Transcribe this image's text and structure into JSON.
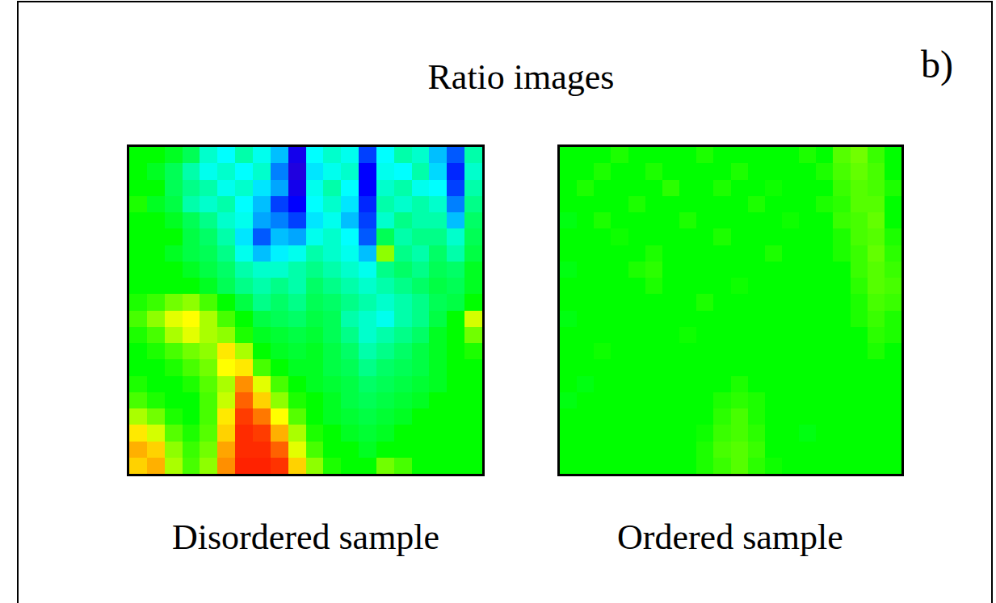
{
  "figure": {
    "title": "Ratio images",
    "panel_label": "b)"
  },
  "chart_data": [
    {
      "type": "heatmap",
      "xlabel": "Disordered sample",
      "tick_labels": false,
      "zlim": [
        0,
        1
      ],
      "z": [
        [
          0.5,
          0.5,
          0.48,
          0.45,
          0.38,
          0.35,
          0.4,
          0.36,
          0.3,
          0.12,
          0.35,
          0.38,
          0.36,
          0.2,
          0.35,
          0.4,
          0.38,
          0.3,
          0.22,
          0.4
        ],
        [
          0.5,
          0.48,
          0.45,
          0.4,
          0.36,
          0.38,
          0.35,
          0.38,
          0.25,
          0.1,
          0.33,
          0.36,
          0.38,
          0.15,
          0.36,
          0.35,
          0.4,
          0.32,
          0.18,
          0.38
        ],
        [
          0.5,
          0.5,
          0.45,
          0.42,
          0.4,
          0.36,
          0.38,
          0.33,
          0.28,
          0.12,
          0.36,
          0.4,
          0.35,
          0.15,
          0.38,
          0.4,
          0.36,
          0.35,
          0.2,
          0.4
        ],
        [
          0.52,
          0.48,
          0.46,
          0.4,
          0.38,
          0.4,
          0.35,
          0.3,
          0.2,
          0.15,
          0.35,
          0.38,
          0.33,
          0.18,
          0.4,
          0.38,
          0.4,
          0.38,
          0.25,
          0.42
        ],
        [
          0.5,
          0.5,
          0.48,
          0.45,
          0.42,
          0.38,
          0.36,
          0.28,
          0.25,
          0.2,
          0.33,
          0.36,
          0.3,
          0.2,
          0.38,
          0.42,
          0.4,
          0.4,
          0.3,
          0.44
        ],
        [
          0.5,
          0.5,
          0.5,
          0.46,
          0.44,
          0.4,
          0.33,
          0.22,
          0.3,
          0.28,
          0.36,
          0.38,
          0.35,
          0.22,
          0.45,
          0.4,
          0.42,
          0.42,
          0.38,
          0.45
        ],
        [
          0.5,
          0.5,
          0.48,
          0.46,
          0.45,
          0.42,
          0.36,
          0.3,
          0.34,
          0.36,
          0.4,
          0.38,
          0.36,
          0.3,
          0.6,
          0.42,
          0.4,
          0.44,
          0.4,
          0.46
        ],
        [
          0.5,
          0.5,
          0.5,
          0.48,
          0.46,
          0.44,
          0.4,
          0.38,
          0.38,
          0.4,
          0.42,
          0.4,
          0.38,
          0.36,
          0.42,
          0.44,
          0.42,
          0.45,
          0.44,
          0.48
        ],
        [
          0.5,
          0.5,
          0.5,
          0.5,
          0.48,
          0.45,
          0.42,
          0.4,
          0.42,
          0.4,
          0.44,
          0.42,
          0.4,
          0.38,
          0.4,
          0.42,
          0.44,
          0.46,
          0.45,
          0.48
        ],
        [
          0.52,
          0.54,
          0.58,
          0.6,
          0.55,
          0.5,
          0.46,
          0.42,
          0.44,
          0.42,
          0.45,
          0.44,
          0.42,
          0.4,
          0.38,
          0.4,
          0.42,
          0.45,
          0.46,
          0.5
        ],
        [
          0.55,
          0.6,
          0.66,
          0.68,
          0.62,
          0.55,
          0.5,
          0.46,
          0.45,
          0.44,
          0.46,
          0.45,
          0.4,
          0.38,
          0.36,
          0.4,
          0.42,
          0.46,
          0.5,
          0.65
        ],
        [
          0.52,
          0.55,
          0.62,
          0.66,
          0.62,
          0.6,
          0.52,
          0.48,
          0.47,
          0.46,
          0.47,
          0.45,
          0.42,
          0.38,
          0.4,
          0.42,
          0.44,
          0.48,
          0.5,
          0.58
        ],
        [
          0.5,
          0.52,
          0.55,
          0.58,
          0.6,
          0.7,
          0.62,
          0.5,
          0.48,
          0.47,
          0.48,
          0.46,
          0.44,
          0.4,
          0.42,
          0.44,
          0.46,
          0.48,
          0.5,
          0.52
        ],
        [
          0.5,
          0.5,
          0.52,
          0.55,
          0.58,
          0.68,
          0.7,
          0.55,
          0.5,
          0.48,
          0.48,
          0.46,
          0.45,
          0.42,
          0.44,
          0.45,
          0.46,
          0.48,
          0.5,
          0.5
        ],
        [
          0.52,
          0.5,
          0.5,
          0.52,
          0.56,
          0.62,
          0.78,
          0.66,
          0.55,
          0.5,
          0.48,
          0.47,
          0.46,
          0.44,
          0.45,
          0.46,
          0.47,
          0.48,
          0.5,
          0.5
        ],
        [
          0.55,
          0.52,
          0.5,
          0.5,
          0.55,
          0.64,
          0.82,
          0.72,
          0.6,
          0.52,
          0.5,
          0.48,
          0.46,
          0.45,
          0.46,
          0.47,
          0.48,
          0.5,
          0.5,
          0.5
        ],
        [
          0.62,
          0.58,
          0.52,
          0.5,
          0.55,
          0.7,
          0.86,
          0.8,
          0.68,
          0.56,
          0.5,
          0.48,
          0.47,
          0.46,
          0.47,
          0.48,
          0.5,
          0.5,
          0.5,
          0.5
        ],
        [
          0.7,
          0.65,
          0.56,
          0.52,
          0.56,
          0.72,
          0.9,
          0.86,
          0.75,
          0.62,
          0.52,
          0.5,
          0.48,
          0.47,
          0.48,
          0.5,
          0.5,
          0.5,
          0.5,
          0.5
        ],
        [
          0.75,
          0.72,
          0.6,
          0.54,
          0.58,
          0.76,
          0.9,
          0.9,
          0.82,
          0.66,
          0.55,
          0.5,
          0.5,
          0.48,
          0.5,
          0.5,
          0.5,
          0.5,
          0.5,
          0.5
        ],
        [
          0.72,
          0.75,
          0.62,
          0.55,
          0.6,
          0.78,
          0.92,
          0.92,
          0.88,
          0.72,
          0.6,
          0.52,
          0.5,
          0.5,
          0.58,
          0.55,
          0.5,
          0.5,
          0.5,
          0.5
        ]
      ]
    },
    {
      "type": "heatmap",
      "xlabel": "Ordered sample",
      "tick_labels": false,
      "zlim": [
        0,
        1
      ],
      "z": [
        [
          0.5,
          0.5,
          0.5,
          0.52,
          0.5,
          0.5,
          0.5,
          0.5,
          0.52,
          0.5,
          0.5,
          0.5,
          0.5,
          0.5,
          0.52,
          0.5,
          0.56,
          0.58,
          0.54,
          0.5
        ],
        [
          0.5,
          0.5,
          0.52,
          0.5,
          0.5,
          0.52,
          0.5,
          0.5,
          0.5,
          0.5,
          0.52,
          0.5,
          0.5,
          0.5,
          0.5,
          0.52,
          0.55,
          0.57,
          0.55,
          0.5
        ],
        [
          0.5,
          0.52,
          0.5,
          0.5,
          0.5,
          0.5,
          0.53,
          0.5,
          0.5,
          0.52,
          0.5,
          0.5,
          0.51,
          0.5,
          0.5,
          0.5,
          0.54,
          0.56,
          0.55,
          0.52
        ],
        [
          0.5,
          0.5,
          0.5,
          0.5,
          0.52,
          0.5,
          0.5,
          0.5,
          0.5,
          0.5,
          0.5,
          0.52,
          0.5,
          0.5,
          0.5,
          0.52,
          0.53,
          0.56,
          0.56,
          0.5
        ],
        [
          0.49,
          0.5,
          0.52,
          0.5,
          0.5,
          0.5,
          0.5,
          0.52,
          0.5,
          0.5,
          0.5,
          0.5,
          0.5,
          0.51,
          0.5,
          0.5,
          0.54,
          0.55,
          0.57,
          0.5
        ],
        [
          0.5,
          0.5,
          0.5,
          0.51,
          0.5,
          0.5,
          0.5,
          0.5,
          0.5,
          0.52,
          0.5,
          0.5,
          0.5,
          0.5,
          0.5,
          0.5,
          0.52,
          0.55,
          0.56,
          0.52
        ],
        [
          0.5,
          0.5,
          0.5,
          0.5,
          0.5,
          0.52,
          0.5,
          0.5,
          0.5,
          0.5,
          0.5,
          0.5,
          0.52,
          0.5,
          0.5,
          0.5,
          0.52,
          0.54,
          0.57,
          0.53
        ],
        [
          0.49,
          0.5,
          0.5,
          0.5,
          0.52,
          0.53,
          0.5,
          0.5,
          0.5,
          0.5,
          0.5,
          0.5,
          0.5,
          0.5,
          0.5,
          0.5,
          0.5,
          0.54,
          0.56,
          0.54
        ],
        [
          0.5,
          0.5,
          0.5,
          0.5,
          0.5,
          0.52,
          0.5,
          0.5,
          0.5,
          0.5,
          0.51,
          0.5,
          0.5,
          0.5,
          0.5,
          0.5,
          0.5,
          0.53,
          0.56,
          0.55
        ],
        [
          0.5,
          0.5,
          0.5,
          0.5,
          0.5,
          0.5,
          0.5,
          0.5,
          0.52,
          0.5,
          0.5,
          0.5,
          0.5,
          0.5,
          0.5,
          0.5,
          0.5,
          0.52,
          0.55,
          0.54
        ],
        [
          0.49,
          0.5,
          0.5,
          0.5,
          0.5,
          0.5,
          0.5,
          0.5,
          0.5,
          0.5,
          0.5,
          0.5,
          0.5,
          0.5,
          0.5,
          0.5,
          0.5,
          0.52,
          0.54,
          0.52
        ],
        [
          0.5,
          0.5,
          0.5,
          0.5,
          0.5,
          0.5,
          0.5,
          0.51,
          0.5,
          0.5,
          0.5,
          0.5,
          0.5,
          0.5,
          0.5,
          0.5,
          0.5,
          0.5,
          0.53,
          0.52
        ],
        [
          0.5,
          0.5,
          0.51,
          0.5,
          0.5,
          0.5,
          0.5,
          0.5,
          0.5,
          0.5,
          0.5,
          0.5,
          0.5,
          0.5,
          0.5,
          0.5,
          0.5,
          0.5,
          0.52,
          0.5
        ],
        [
          0.5,
          0.5,
          0.5,
          0.5,
          0.5,
          0.5,
          0.5,
          0.5,
          0.5,
          0.5,
          0.5,
          0.5,
          0.5,
          0.5,
          0.5,
          0.5,
          0.5,
          0.5,
          0.5,
          0.5
        ],
        [
          0.5,
          0.49,
          0.5,
          0.5,
          0.5,
          0.5,
          0.5,
          0.5,
          0.5,
          0.5,
          0.52,
          0.5,
          0.5,
          0.5,
          0.5,
          0.5,
          0.5,
          0.5,
          0.5,
          0.5
        ],
        [
          0.49,
          0.5,
          0.5,
          0.5,
          0.5,
          0.5,
          0.5,
          0.5,
          0.5,
          0.52,
          0.53,
          0.52,
          0.5,
          0.5,
          0.5,
          0.5,
          0.5,
          0.5,
          0.5,
          0.5
        ],
        [
          0.5,
          0.5,
          0.5,
          0.5,
          0.5,
          0.5,
          0.5,
          0.5,
          0.5,
          0.53,
          0.55,
          0.52,
          0.5,
          0.5,
          0.5,
          0.5,
          0.5,
          0.5,
          0.5,
          0.5
        ],
        [
          0.5,
          0.5,
          0.5,
          0.5,
          0.5,
          0.5,
          0.5,
          0.5,
          0.51,
          0.54,
          0.55,
          0.53,
          0.5,
          0.5,
          0.49,
          0.5,
          0.5,
          0.5,
          0.5,
          0.5
        ],
        [
          0.5,
          0.5,
          0.5,
          0.5,
          0.5,
          0.5,
          0.5,
          0.5,
          0.52,
          0.55,
          0.56,
          0.54,
          0.5,
          0.5,
          0.5,
          0.5,
          0.5,
          0.5,
          0.5,
          0.5
        ],
        [
          0.5,
          0.5,
          0.5,
          0.5,
          0.5,
          0.5,
          0.5,
          0.5,
          0.52,
          0.54,
          0.56,
          0.53,
          0.51,
          0.5,
          0.5,
          0.5,
          0.5,
          0.5,
          0.5,
          0.5
        ]
      ]
    }
  ]
}
